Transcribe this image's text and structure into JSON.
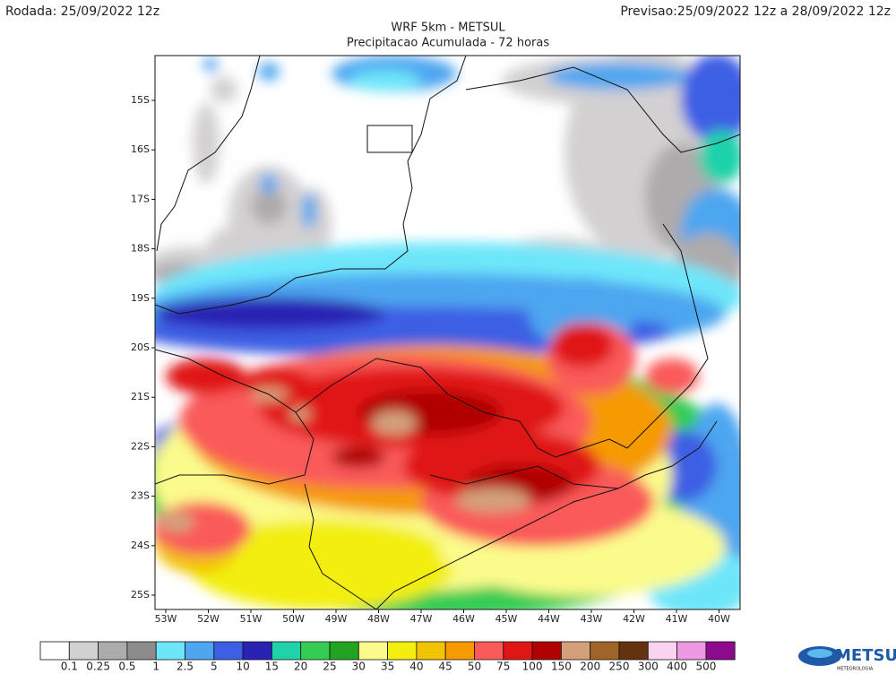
{
  "header": {
    "left": "Rodada: 25/09/2022 12z",
    "right": "Previsao:25/09/2022 12z a 28/09/2022 12z",
    "title": "WRF 5km - METSUL",
    "subtitle": "Precipitacao Acumulada - 72 horas"
  },
  "map": {
    "lat_labels": [
      "15S",
      "16S",
      "17S",
      "18S",
      "19S",
      "20S",
      "21S",
      "22S",
      "23S",
      "24S",
      "25S"
    ],
    "lon_labels": [
      "53W",
      "52W",
      "51W",
      "50W",
      "49W",
      "48W",
      "47W",
      "46W",
      "45W",
      "44W",
      "43W",
      "42W",
      "41W",
      "40W"
    ]
  },
  "legend": {
    "labels": [
      "0.1",
      "0.25",
      "0.5",
      "1",
      "2.5",
      "5",
      "10",
      "15",
      "20",
      "25",
      "30",
      "35",
      "40",
      "45",
      "50",
      "75",
      "100",
      "150",
      "200",
      "250",
      "300",
      "400",
      "500"
    ],
    "colors": [
      "#ffffff",
      "#d3d0d1",
      "#aeabac",
      "#8e8b8c",
      "#6ee6fa",
      "#4ea6f0",
      "#3c5fe4",
      "#2a22b4",
      "#1fd2aa",
      "#35cc55",
      "#22a322",
      "#fbfb8c",
      "#f3ee10",
      "#f2c300",
      "#f59a00",
      "#fa5a5a",
      "#e01616",
      "#b00000",
      "#d4a07c",
      "#a16428",
      "#64320f",
      "#fbd2f0",
      "#ee98e4",
      "#8c0a8c"
    ]
  },
  "logo": {
    "name": "METSUL",
    "sub": "METEOROLOGIA"
  }
}
